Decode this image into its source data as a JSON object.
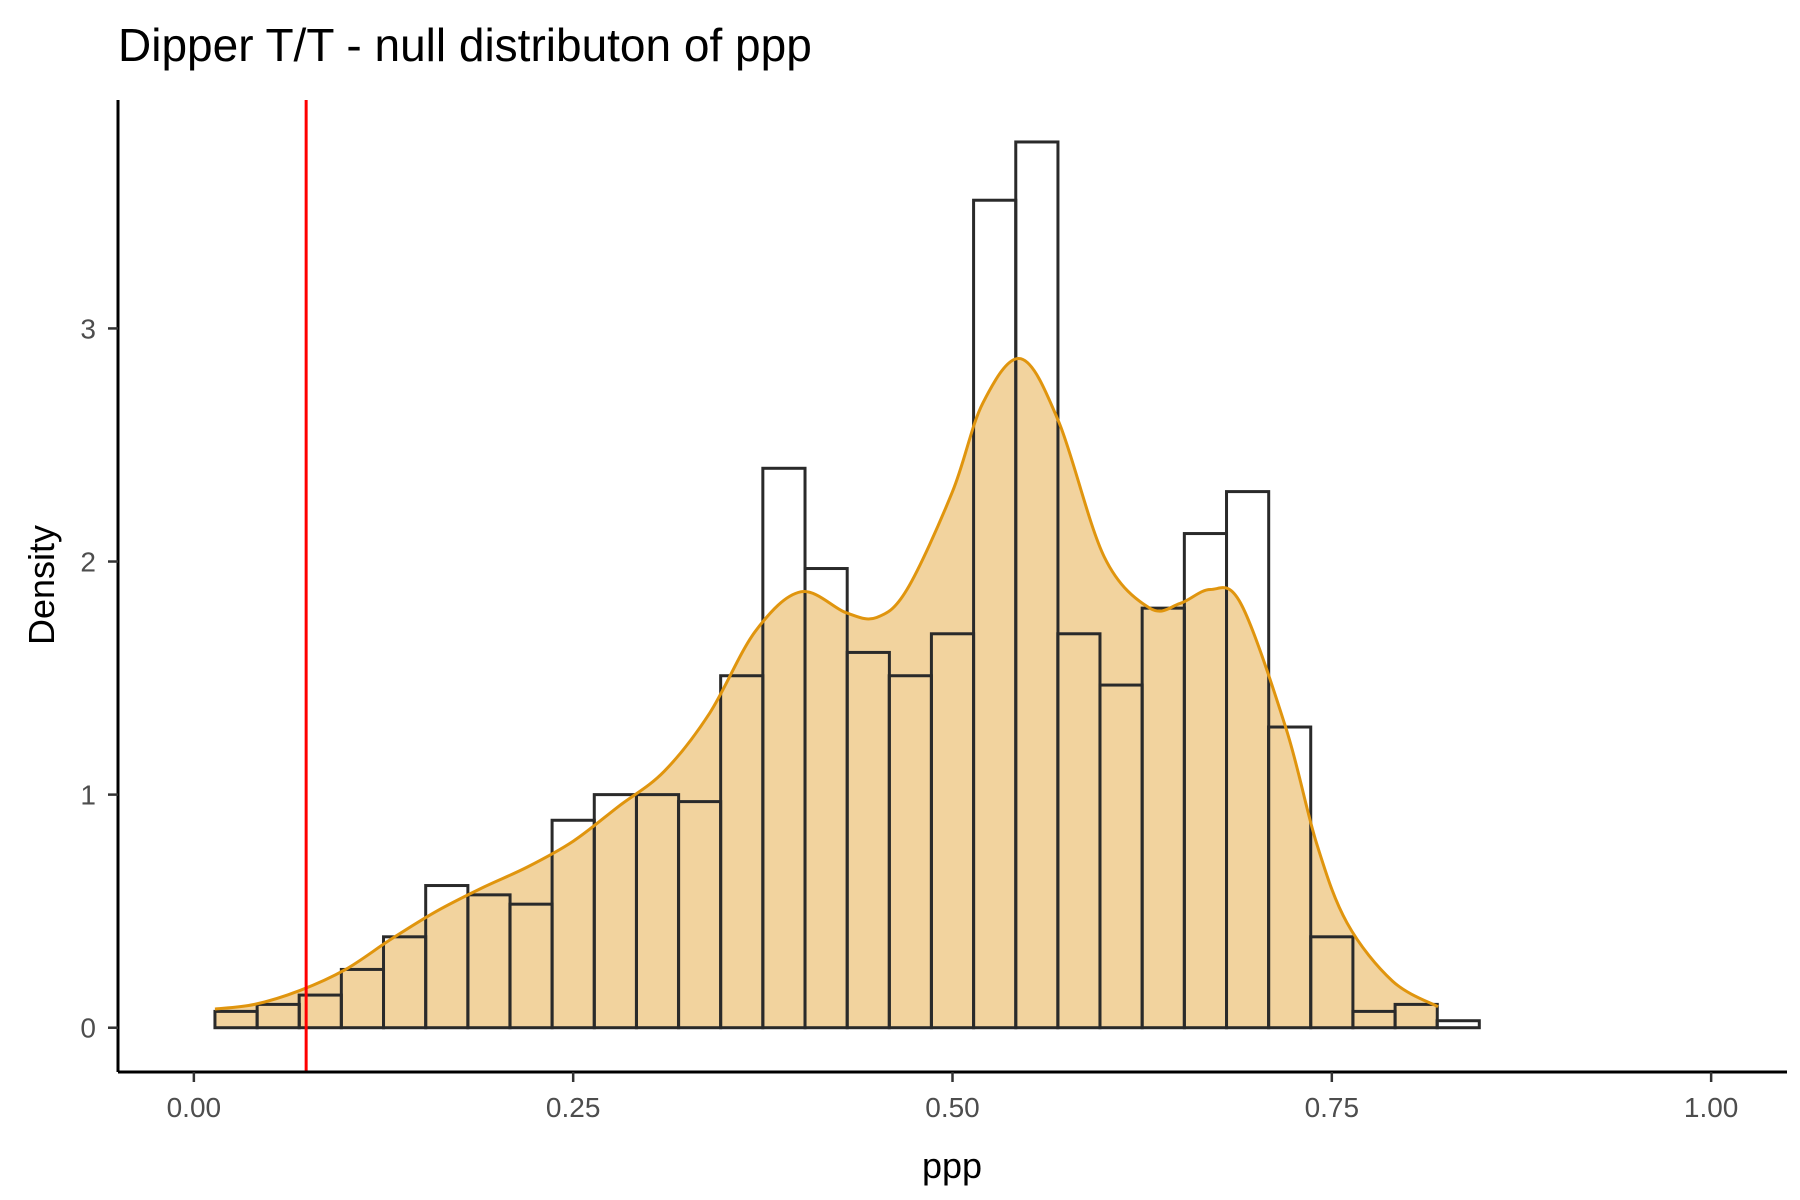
{
  "chart_data": {
    "type": "bar",
    "title": "Dipper T/T - null distributon of ppp",
    "xlabel": "ppp",
    "ylabel": "Density",
    "xlim": [
      -0.05,
      1.05
    ],
    "ylim": [
      -0.19,
      3.98
    ],
    "x_ticks": [
      "0.00",
      "0.25",
      "0.50",
      "0.75",
      "1.00"
    ],
    "x_tick_values": [
      0.0,
      0.25,
      0.5,
      0.75,
      1.0
    ],
    "y_ticks": [
      "0",
      "1",
      "2",
      "3"
    ],
    "y_tick_values": [
      0,
      1,
      2,
      3
    ],
    "grid": false,
    "histogram": {
      "bin_width": 0.0278,
      "bin_starts": [
        0.0139,
        0.0417,
        0.0694,
        0.0972,
        0.125,
        0.1528,
        0.1806,
        0.2083,
        0.2361,
        0.2639,
        0.2917,
        0.3194,
        0.3472,
        0.375,
        0.4028,
        0.4306,
        0.4583,
        0.4861,
        0.5139,
        0.5417,
        0.5694,
        0.5972,
        0.625,
        0.6528,
        0.6806,
        0.7083,
        0.7361,
        0.7639,
        0.7917,
        0.8194
      ],
      "values": [
        0.07,
        0.1,
        0.14,
        0.25,
        0.39,
        0.61,
        0.57,
        0.53,
        0.89,
        1.0,
        1.0,
        0.97,
        1.51,
        2.4,
        1.97,
        1.61,
        1.51,
        1.69,
        3.55,
        3.8,
        1.69,
        1.47,
        1.8,
        2.12,
        2.3,
        1.29,
        0.39,
        0.07,
        0.1,
        0.03
      ]
    },
    "density": {
      "x": [
        0.0139,
        0.04,
        0.07,
        0.1,
        0.13,
        0.16,
        0.19,
        0.22,
        0.25,
        0.28,
        0.31,
        0.34,
        0.37,
        0.4,
        0.43,
        0.45,
        0.47,
        0.5,
        0.52,
        0.545,
        0.57,
        0.6,
        0.63,
        0.65,
        0.67,
        0.69,
        0.72,
        0.74,
        0.76,
        0.79,
        0.82
      ],
      "y": [
        0.08,
        0.1,
        0.16,
        0.25,
        0.38,
        0.5,
        0.6,
        0.69,
        0.8,
        0.95,
        1.1,
        1.35,
        1.7,
        1.87,
        1.78,
        1.76,
        1.88,
        2.3,
        2.68,
        2.87,
        2.6,
        2.02,
        1.8,
        1.82,
        1.88,
        1.82,
        1.28,
        0.79,
        0.45,
        0.2,
        0.09
      ],
      "color": "#e0950e",
      "fill": "#f2d39e"
    },
    "vline": {
      "x": 0.074,
      "color": "#ff0000"
    },
    "bar_stroke": "#2a2a2a"
  }
}
